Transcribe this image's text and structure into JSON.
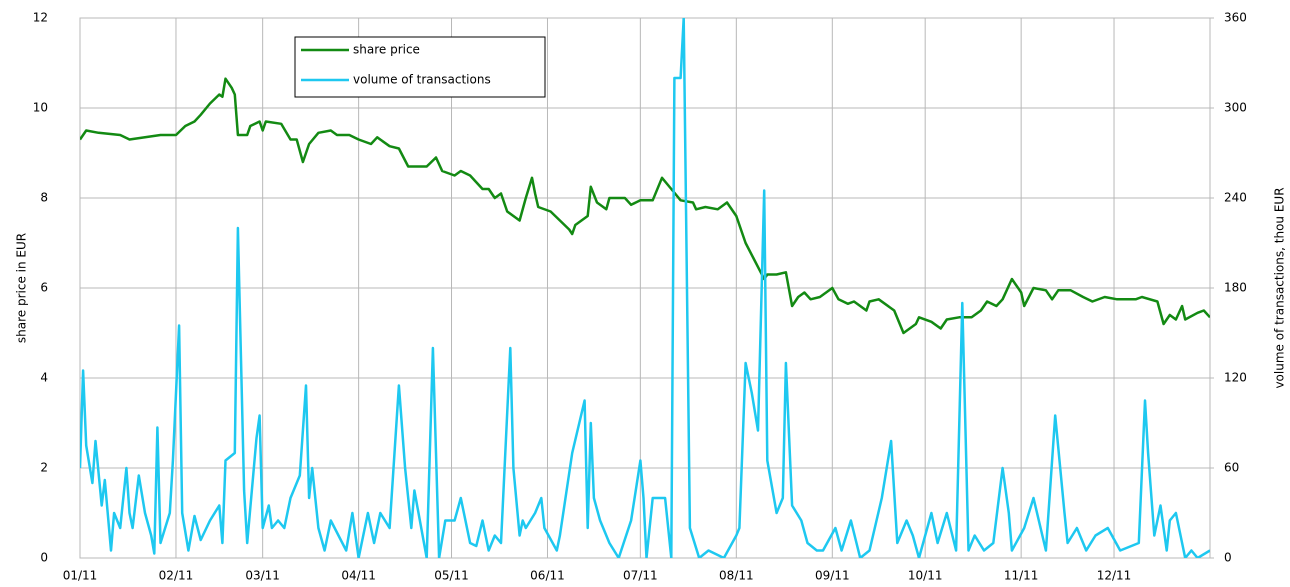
{
  "chart_data": {
    "type": "line",
    "y_label": "share price in EUR",
    "y2_label": "volume of transactions, thou EUR",
    "xlim": [
      0,
      365
    ],
    "xticks": [
      {
        "value": 0,
        "label": "01/11"
      },
      {
        "value": 31,
        "label": "02/11"
      },
      {
        "value": 59,
        "label": "03/11"
      },
      {
        "value": 90,
        "label": "04/11"
      },
      {
        "value": 120,
        "label": "05/11"
      },
      {
        "value": 151,
        "label": "06/11"
      },
      {
        "value": 181,
        "label": "07/11"
      },
      {
        "value": 212,
        "label": "08/11"
      },
      {
        "value": 243,
        "label": "09/11"
      },
      {
        "value": 273,
        "label": "10/11"
      },
      {
        "value": 304,
        "label": "11/11"
      },
      {
        "value": 334,
        "label": "12/11"
      }
    ],
    "ylim": [
      0,
      12
    ],
    "yticks": [
      0,
      2,
      4,
      6,
      8,
      10,
      12
    ],
    "y2lim": [
      0,
      360
    ],
    "y2ticks": [
      0,
      60,
      120,
      180,
      240,
      300,
      360
    ],
    "grid": true,
    "legend": "top",
    "series": [
      {
        "name": "share price",
        "color": "#138a13",
        "x": [
          0,
          2,
          6,
          13,
          16,
          26,
          31,
          34,
          37,
          39,
          42,
          45,
          46,
          47,
          49,
          50,
          51,
          54,
          55,
          58,
          59,
          60,
          65,
          68,
          70,
          72,
          74,
          77,
          81,
          83,
          87,
          90,
          94,
          96,
          100,
          103,
          106,
          112,
          115,
          117,
          121,
          123,
          126,
          130,
          132,
          134,
          136,
          138,
          142,
          144,
          146,
          147,
          148,
          152,
          155,
          158,
          159,
          160,
          164,
          165,
          167,
          170,
          171,
          176,
          178,
          181,
          185,
          188,
          191,
          194,
          198,
          199,
          202,
          206,
          209,
          212,
          215,
          218,
          221,
          222,
          225,
          228,
          230,
          232,
          234,
          236,
          239,
          243,
          245,
          248,
          250,
          254,
          255,
          258,
          263,
          266,
          270,
          271,
          275,
          278,
          280,
          284,
          288,
          291,
          293,
          296,
          298,
          301,
          304,
          305,
          308,
          312,
          314,
          316,
          320,
          324,
          327,
          331,
          335,
          341,
          343,
          348,
          350,
          352,
          354,
          356,
          357,
          361,
          363,
          365
        ],
        "values": [
          9.3,
          9.5,
          9.45,
          9.4,
          9.3,
          9.4,
          9.4,
          9.6,
          9.7,
          9.85,
          10.1,
          10.3,
          10.25,
          10.65,
          10.45,
          10.3,
          9.4,
          9.4,
          9.6,
          9.7,
          9.5,
          9.7,
          9.65,
          9.3,
          9.3,
          8.8,
          9.2,
          9.45,
          9.5,
          9.4,
          9.4,
          9.3,
          9.2,
          9.35,
          9.15,
          9.1,
          8.7,
          8.7,
          8.9,
          8.6,
          8.5,
          8.6,
          8.5,
          8.2,
          8.2,
          8.0,
          8.1,
          7.7,
          7.5,
          8.0,
          8.45,
          8.1,
          7.8,
          7.7,
          7.5,
          7.3,
          7.2,
          7.4,
          7.6,
          8.25,
          7.9,
          7.75,
          8.0,
          8.0,
          7.85,
          7.95,
          7.95,
          8.45,
          8.2,
          7.95,
          7.9,
          7.75,
          7.8,
          7.75,
          7.9,
          7.6,
          7.0,
          6.6,
          6.2,
          6.3,
          6.3,
          6.35,
          5.6,
          5.8,
          5.9,
          5.75,
          5.8,
          6.0,
          5.75,
          5.65,
          5.7,
          5.5,
          5.7,
          5.75,
          5.5,
          5.0,
          5.2,
          5.35,
          5.25,
          5.1,
          5.3,
          5.35,
          5.35,
          5.5,
          5.7,
          5.6,
          5.75,
          6.2,
          5.9,
          5.6,
          6.0,
          5.95,
          5.75,
          5.95,
          5.95,
          5.8,
          5.7,
          5.8,
          5.75,
          5.75,
          5.8,
          5.7,
          5.2,
          5.4,
          5.3,
          5.6,
          5.3,
          5.45,
          5.5,
          5.35
        ]
      },
      {
        "name": "volume of transactions",
        "color": "#1ec8f0",
        "axis": "y2",
        "x": [
          0,
          1,
          2,
          4,
          5,
          7,
          8,
          10,
          11,
          13,
          15,
          16,
          17,
          19,
          21,
          23,
          24,
          25,
          26,
          29,
          30,
          32,
          33,
          35,
          37,
          39,
          42,
          45,
          46,
          47,
          50,
          51,
          53,
          54,
          57,
          58,
          59,
          61,
          62,
          64,
          66,
          68,
          71,
          73,
          74,
          75,
          77,
          79,
          81,
          86,
          88,
          90,
          93,
          95,
          97,
          100,
          103,
          105,
          107,
          108,
          112,
          114,
          116,
          118,
          121,
          123,
          126,
          128,
          130,
          132,
          134,
          136,
          139,
          140,
          142,
          143,
          144,
          147,
          149,
          150,
          154,
          155,
          159,
          163,
          164,
          165,
          166,
          168,
          171,
          174,
          178,
          181,
          182,
          183,
          185,
          189,
          191,
          192,
          194,
          195,
          197,
          200,
          203,
          208,
          212,
          213,
          215,
          217,
          219,
          221,
          222,
          225,
          227,
          228,
          230,
          233,
          235,
          238,
          240,
          244,
          246,
          249,
          252,
          255,
          259,
          262,
          264,
          267,
          269,
          271,
          275,
          277,
          280,
          283,
          285,
          287,
          289,
          292,
          295,
          298,
          300,
          301,
          305,
          308,
          312,
          315,
          318,
          319,
          322,
          325,
          328,
          332,
          336,
          342,
          344,
          345,
          347,
          349,
          351,
          352,
          354,
          357,
          359,
          361,
          365
        ],
        "values": [
          60,
          125,
          75,
          50,
          78,
          35,
          52,
          5,
          30,
          20,
          60,
          30,
          20,
          55,
          30,
          15,
          3,
          87,
          10,
          30,
          65,
          155,
          30,
          5,
          28,
          12,
          25,
          35,
          10,
          65,
          70,
          220,
          45,
          10,
          80,
          95,
          20,
          35,
          20,
          25,
          20,
          40,
          55,
          115,
          40,
          60,
          20,
          5,
          25,
          5,
          30,
          0,
          30,
          10,
          30,
          20,
          115,
          60,
          20,
          45,
          0,
          140,
          0,
          25,
          25,
          40,
          10,
          8,
          25,
          5,
          15,
          10,
          140,
          60,
          15,
          25,
          20,
          30,
          40,
          20,
          5,
          15,
          70,
          105,
          20,
          90,
          40,
          25,
          10,
          0,
          25,
          65,
          40,
          0,
          40,
          40,
          0,
          320,
          320,
          360,
          20,
          0,
          5,
          0,
          15,
          20,
          130,
          110,
          85,
          245,
          65,
          30,
          40,
          130,
          35,
          25,
          10,
          5,
          5,
          20,
          5,
          25,
          0,
          5,
          40,
          78,
          10,
          25,
          15,
          0,
          30,
          10,
          30,
          5,
          170,
          5,
          15,
          5,
          10,
          60,
          30,
          5,
          20,
          40,
          5,
          95,
          30,
          10,
          20,
          5,
          15,
          20,
          5,
          10,
          105,
          70,
          15,
          35,
          5,
          25,
          30,
          0,
          5,
          0,
          5
        ]
      }
    ]
  }
}
